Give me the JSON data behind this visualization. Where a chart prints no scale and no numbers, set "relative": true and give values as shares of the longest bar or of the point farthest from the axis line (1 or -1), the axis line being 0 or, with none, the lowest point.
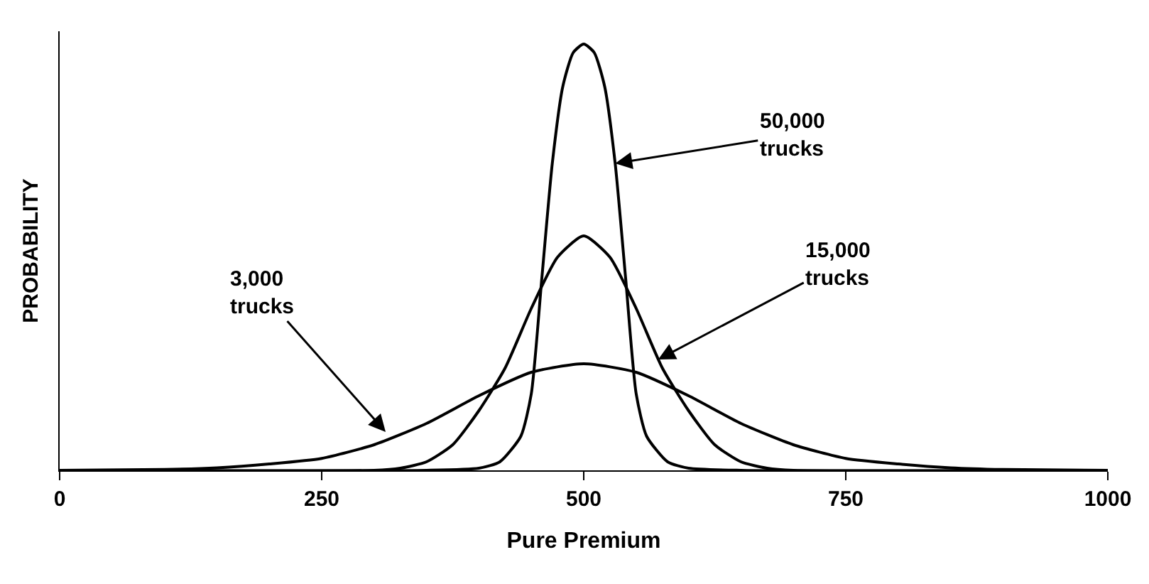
{
  "chart_data": {
    "type": "line",
    "relative": true,
    "xlabel": "Pure Premium",
    "ylabel": "PROBABILITY",
    "xlim": [
      0,
      1000
    ],
    "xticks": [
      0,
      250,
      500,
      750,
      1000
    ],
    "marker": "none",
    "line_style": "solid",
    "series": [
      {
        "color": "#000000",
        "x": [
          0,
          350,
          400,
          420,
          440,
          450,
          460,
          470,
          480,
          490,
          500,
          510,
          520,
          530,
          540,
          550,
          560,
          580,
          600,
          650,
          1000
        ],
        "values": [
          0,
          0,
          0.005,
          0.02,
          0.08,
          0.18,
          0.45,
          0.72,
          0.9,
          0.98,
          1,
          0.98,
          0.9,
          0.72,
          0.45,
          0.18,
          0.08,
          0.02,
          0.005,
          0,
          0
        ]
      },
      {
        "color": "#000000",
        "x": [
          0,
          300,
          325,
          350,
          375,
          400,
          425,
          450,
          475,
          500,
          525,
          550,
          575,
          600,
          625,
          650,
          675,
          700,
          1000
        ],
        "values": [
          0,
          0,
          0.005,
          0.02,
          0.06,
          0.14,
          0.24,
          0.38,
          0.5,
          0.55,
          0.5,
          0.38,
          0.24,
          0.14,
          0.06,
          0.02,
          0.005,
          0,
          0
        ]
      },
      {
        "color": "#000000",
        "x": [
          0,
          100,
          150,
          200,
          250,
          300,
          350,
          400,
          450,
          500,
          550,
          600,
          650,
          700,
          750,
          800,
          850,
          900,
          1000
        ],
        "values": [
          0,
          0.002,
          0.006,
          0.015,
          0.028,
          0.06,
          0.11,
          0.175,
          0.23,
          0.25,
          0.23,
          0.175,
          0.11,
          0.06,
          0.028,
          0.015,
          0.006,
          0.002,
          0
        ]
      }
    ],
    "annotations": [
      {
        "text": "50,000\ntrucks",
        "x": 530,
        "y": 0.72
      },
      {
        "text": "15,000\ntrucks",
        "x": 571,
        "y": 0.26
      },
      {
        "text": "3,000\ntrucks",
        "x": 311,
        "y": 0.09
      }
    ]
  }
}
